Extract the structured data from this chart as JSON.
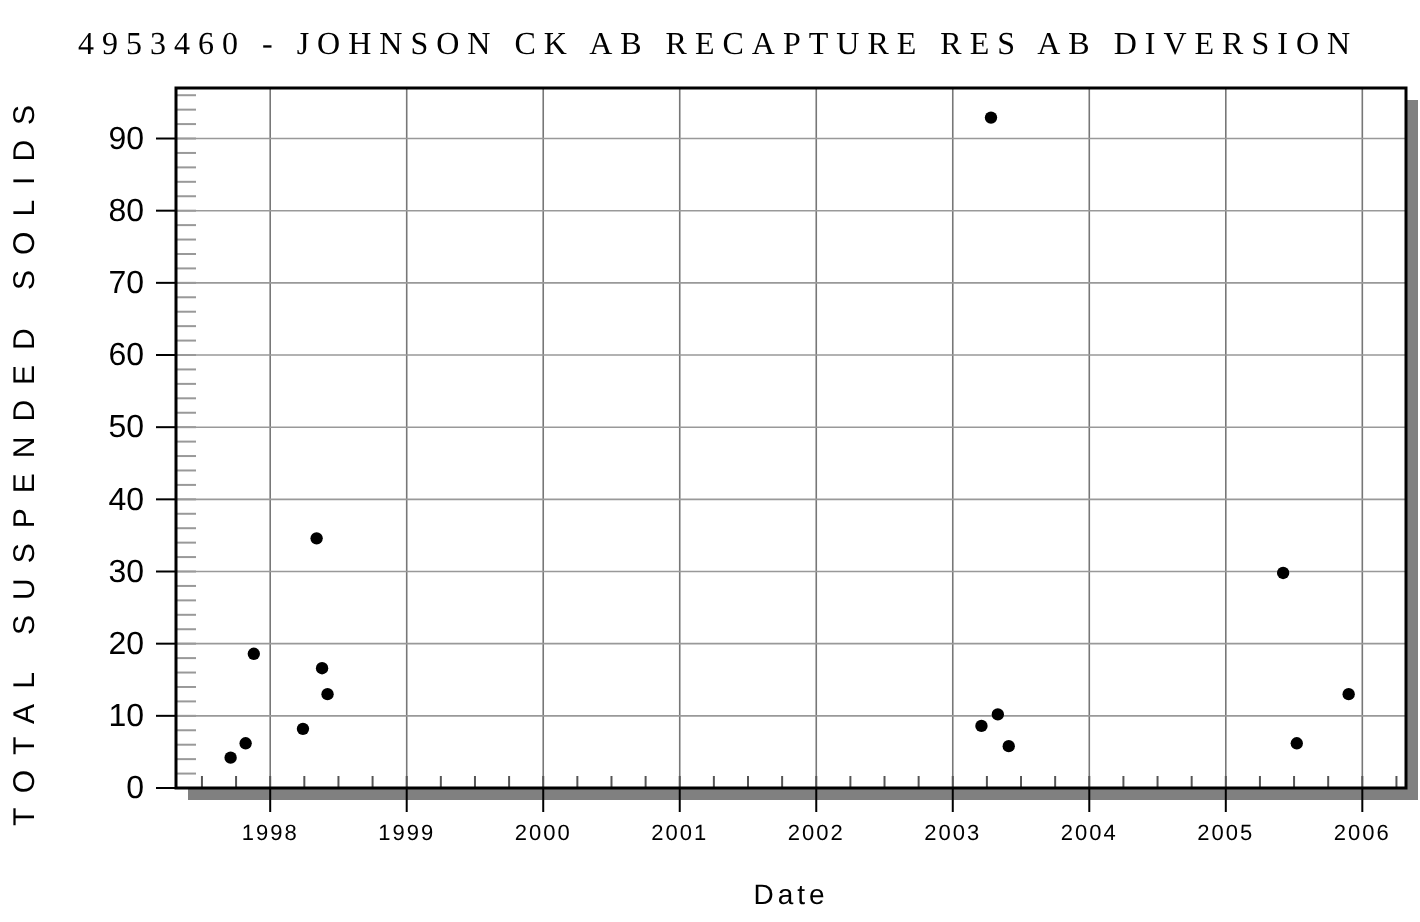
{
  "chart_data": {
    "type": "scatter",
    "title": "4953460 - JOHNSON CK AB RECAPTURE RES AB DIVERSION",
    "xlabel": "Date",
    "ylabel": "TOTAL SUSPENDED SOLIDS",
    "x": [
      1997.71,
      1997.82,
      1997.88,
      1998.24,
      1998.34,
      1998.38,
      1998.42,
      2003.21,
      2003.28,
      2003.33,
      2003.41,
      2005.42,
      2005.52,
      2005.9
    ],
    "series": [
      {
        "color": "#000000",
        "values": [
          4.2,
          6.2,
          18.6,
          8.2,
          34.6,
          16.6,
          13.0,
          8.6,
          92.9,
          10.2,
          5.8,
          29.8,
          6.2,
          13.0
        ]
      }
    ],
    "xlim": [
      1997.31,
      2006.32
    ],
    "xticks": [
      1998,
      1999,
      2000,
      2001,
      2002,
      2003,
      2004,
      2005,
      2006
    ],
    "ylim": [
      0,
      97
    ],
    "yticks": [
      0,
      10,
      20,
      30,
      40,
      50,
      60,
      70,
      80,
      90
    ],
    "grid": true,
    "marker": "circle"
  }
}
